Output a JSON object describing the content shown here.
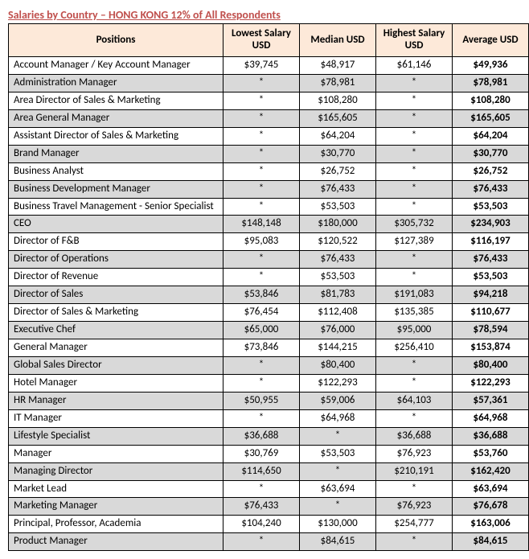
{
  "title": "Salaries by Country – HONG KONG 12% of All Respondents",
  "columns": [
    "Positions",
    "Lowest Salary USD",
    "Median USD",
    "Highest Salary USD",
    "Average USD"
  ],
  "rows": [
    {
      "pos": "Account Manager / Key Account Manager",
      "low": "$39,745",
      "med": "$48,917",
      "high": "$61,146",
      "avg": "$49,936",
      "shade": false
    },
    {
      "pos": "Administration Manager",
      "low": "*",
      "med": "$78,981",
      "high": "*",
      "avg": "$78,981",
      "shade": true
    },
    {
      "pos": "Area Director of Sales & Marketing",
      "low": "*",
      "med": "$108,280",
      "high": "*",
      "avg": "$108,280",
      "shade": false
    },
    {
      "pos": "Area General Manager",
      "low": "*",
      "med": "$165,605",
      "high": "*",
      "avg": "$165,605",
      "shade": true
    },
    {
      "pos": "Assistant Director of Sales & Marketing",
      "low": "*",
      "med": "$64,204",
      "high": "*",
      "avg": "$64,204",
      "shade": false
    },
    {
      "pos": "Brand Manager",
      "low": "*",
      "med": "$30,770",
      "high": "*",
      "avg": "$30,770",
      "shade": true
    },
    {
      "pos": "Business Analyst",
      "low": "*",
      "med": "$26,752",
      "high": "*",
      "avg": "$26,752",
      "shade": false
    },
    {
      "pos": "Business Development Manager",
      "low": "*",
      "med": "$76,433",
      "high": "*",
      "avg": "$76,433",
      "shade": true
    },
    {
      "pos": "Business Travel Management - Senior Specialist",
      "low": "*",
      "med": "$53,503",
      "high": "*",
      "avg": "$53,503",
      "shade": false
    },
    {
      "pos": "CEO",
      "low": "$148,148",
      "med": "$180,000",
      "high": "$305,732",
      "avg": "$234,903",
      "shade": true
    },
    {
      "pos": "Director of F&B",
      "low": "$95,083",
      "med": "$120,522",
      "high": "$127,389",
      "avg": "$116,197",
      "shade": false
    },
    {
      "pos": "Director of Operations",
      "low": "*",
      "med": "$76,433",
      "high": "*",
      "avg": "$76,433",
      "shade": true
    },
    {
      "pos": "Director of Revenue",
      "low": "*",
      "med": "$53,503",
      "high": "*",
      "avg": "$53,503",
      "shade": false
    },
    {
      "pos": "Director of Sales",
      "low": "$53,846",
      "med": "$81,783",
      "high": "$191,083",
      "avg": "$94,218",
      "shade": true
    },
    {
      "pos": "Director of Sales & Marketing",
      "low": "$76,454",
      "med": "$112,408",
      "high": "$135,385",
      "avg": "$110,677",
      "shade": false
    },
    {
      "pos": "Executive Chef",
      "low": "$65,000",
      "med": "$76,000",
      "high": "$95,000",
      "avg": "$78,594",
      "shade": true
    },
    {
      "pos": "General Manager",
      "low": "$73,846",
      "med": "$144,215",
      "high": "$256,410",
      "avg": "$153,874",
      "shade": false
    },
    {
      "pos": "Global Sales Director",
      "low": "*",
      "med": "$80,400",
      "high": "*",
      "avg": "$80,400",
      "shade": true
    },
    {
      "pos": "Hotel Manager",
      "low": "*",
      "med": "$122,293",
      "high": "*",
      "avg": "$122,293",
      "shade": false
    },
    {
      "pos": "HR Manager",
      "low": "$50,955",
      "med": "$59,006",
      "high": "$64,103",
      "avg": "$57,361",
      "shade": true
    },
    {
      "pos": "IT Manager",
      "low": "*",
      "med": "$64,968",
      "high": "*",
      "avg": "$64,968",
      "shade": false
    },
    {
      "pos": "Lifestyle Specialist",
      "low": "$36,688",
      "med": "*",
      "high": "$36,688",
      "avg": "$36,688",
      "shade": true
    },
    {
      "pos": "Manager",
      "low": "$30,769",
      "med": "$53,503",
      "high": "$76,923",
      "avg": "$53,760",
      "shade": false
    },
    {
      "pos": "Managing Director",
      "low": "$114,650",
      "med": "*",
      "high": "$210,191",
      "avg": "$162,420",
      "shade": true
    },
    {
      "pos": "Market Lead",
      "low": "*",
      "med": "$63,694",
      "high": "*",
      "avg": "$63,694",
      "shade": false
    },
    {
      "pos": "Marketing Manager",
      "low": "$76,433",
      "med": "*",
      "high": "$76,923",
      "avg": "$76,678",
      "shade": true
    },
    {
      "pos": "Principal, Professor, Academia",
      "low": "$104,240",
      "med": "$130,000",
      "high": "$254,777",
      "avg": "$163,006",
      "shade": false
    },
    {
      "pos": "Product Manager",
      "low": "*",
      "med": "$84,615",
      "high": "*",
      "avg": "$84,615",
      "shade": true
    }
  ]
}
